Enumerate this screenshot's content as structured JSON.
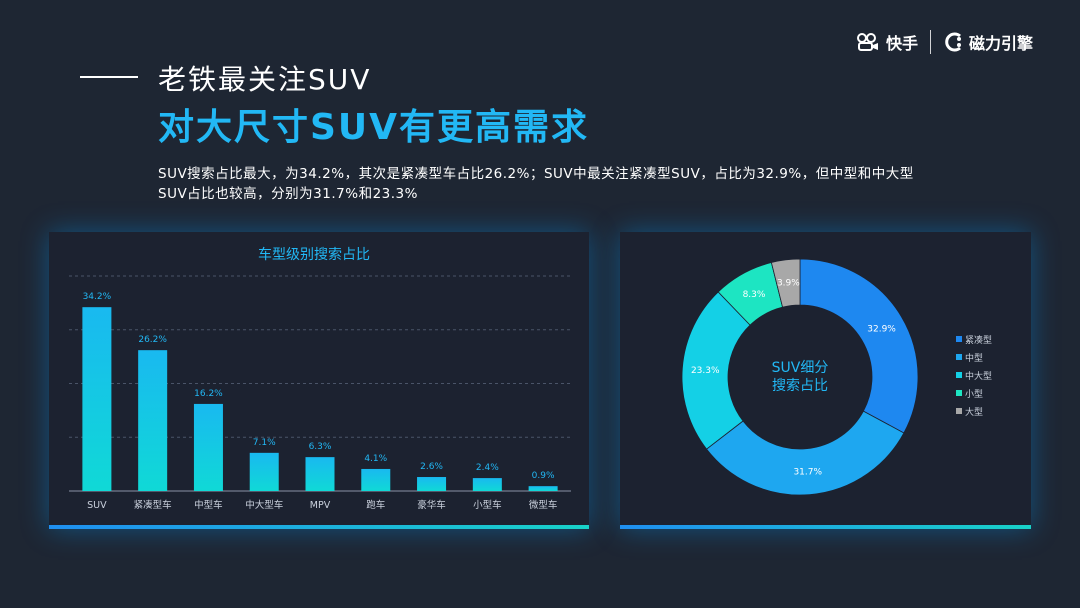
{
  "brand": {
    "logo1": "快手",
    "logo2": "磁力引擎"
  },
  "heading": {
    "line1": "老铁最关注SUV",
    "line2": "对大尺寸SUV有更高需求"
  },
  "summary": {
    "text": "SUV搜索占比最大，为34.2%，其次是紧凑型车占比26.2%；SUV中最关注紧凑型SUV，占比为32.9%，但中型和中大型SUV占比也较高，分别为31.7%和23.3%"
  },
  "colors": {
    "accent": "#22b8f5",
    "background": "#1e2633",
    "panel": "#1c2230"
  },
  "chart_data": [
    {
      "type": "bar",
      "title": "车型级别搜索占比",
      "categories": [
        "SUV",
        "紧凑型车",
        "中型车",
        "中大型车",
        "MPV",
        "跑车",
        "豪华车",
        "小型车",
        "微型车"
      ],
      "values": [
        34.2,
        26.2,
        16.2,
        7.1,
        6.3,
        4.1,
        2.6,
        2.4,
        0.9
      ],
      "value_labels": [
        "34.2%",
        "26.2%",
        "16.2%",
        "7.1%",
        "6.3%",
        "4.1%",
        "2.6%",
        "2.4%",
        "0.9%"
      ],
      "ylim": [
        0,
        40
      ],
      "grid": true,
      "xlabel": "",
      "ylabel": "",
      "bar_gradient": [
        "#10d2e8",
        "#19b9f0"
      ]
    },
    {
      "type": "pie",
      "title": "SUV细分搜索占比",
      "title_lines": [
        "SUV细分",
        "搜索占比"
      ],
      "labels": [
        "紧凑型",
        "中型",
        "中大型",
        "小型",
        "大型"
      ],
      "values": [
        32.9,
        31.7,
        23.3,
        8.3,
        3.9
      ],
      "value_labels": [
        "32.9%",
        "31.7%",
        "23.3%",
        "8.3%",
        "3.9%"
      ],
      "colors": [
        "#1e88f0",
        "#1ea7f0",
        "#14d0e6",
        "#1de5c2",
        "#a8a8a8"
      ],
      "legend": "right",
      "donut": true
    }
  ]
}
